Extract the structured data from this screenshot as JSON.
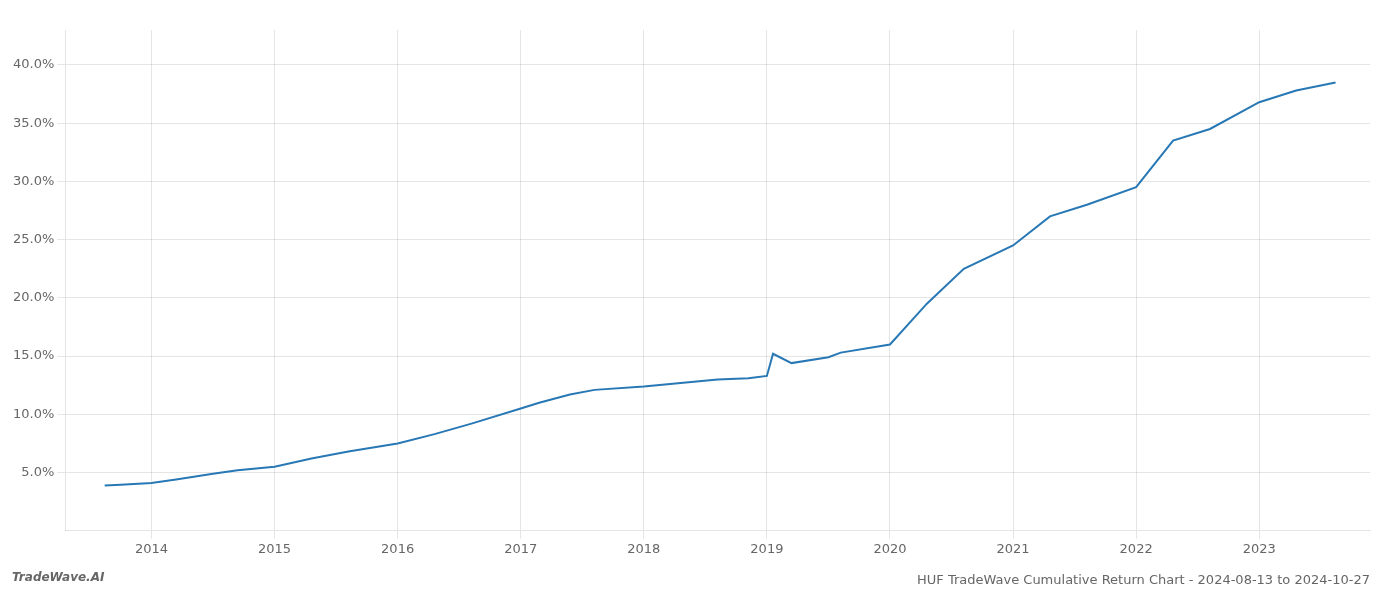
{
  "chart_data": {
    "type": "line",
    "title": "HUF TradeWave Cumulative Return Chart - 2024-08-13 to 2024-10-27",
    "annotations": [
      "TradeWave.AI"
    ],
    "x": [
      2013.62,
      2013.75,
      2014.0,
      2014.2,
      2014.5,
      2014.7,
      2015.0,
      2015.3,
      2015.6,
      2016.0,
      2016.3,
      2016.6,
      2017.0,
      2017.15,
      2017.4,
      2017.6,
      2018.0,
      2018.3,
      2018.6,
      2018.85,
      2019.0,
      2019.05,
      2019.2,
      2019.5,
      2019.6,
      2020.0,
      2020.3,
      2020.6,
      2021.0,
      2021.3,
      2021.6,
      2022.0,
      2022.3,
      2022.6,
      2023.0,
      2023.3,
      2023.62
    ],
    "values": [
      3.9,
      3.95,
      4.1,
      4.4,
      4.9,
      5.2,
      5.5,
      6.2,
      6.8,
      7.5,
      8.3,
      9.2,
      10.5,
      11.0,
      11.7,
      12.1,
      12.4,
      12.7,
      13.0,
      13.1,
      13.3,
      15.2,
      14.4,
      14.9,
      15.3,
      16.0,
      19.5,
      22.5,
      24.5,
      27.0,
      28.0,
      29.5,
      33.5,
      34.5,
      36.8,
      37.8,
      38.5
    ],
    "color": "#2878b5",
    "xlim": [
      2013.3,
      2023.9
    ],
    "xticks": [
      2014,
      2015,
      2016,
      2017,
      2018,
      2019,
      2020,
      2021,
      2022,
      2023
    ],
    "ylim": [
      0,
      43
    ],
    "yticks": [
      {
        "value": 5.0,
        "label": "5.0%"
      },
      {
        "value": 10.0,
        "label": "10.0%"
      },
      {
        "value": 15.0,
        "label": "15.0%"
      },
      {
        "value": 20.0,
        "label": "20.0%"
      },
      {
        "value": 25.0,
        "label": "25.0%"
      },
      {
        "value": 30.0,
        "label": "30.0%"
      },
      {
        "value": 35.0,
        "label": "35.0%"
      },
      {
        "value": 40.0,
        "label": "40.0%"
      }
    ],
    "grid": true
  }
}
